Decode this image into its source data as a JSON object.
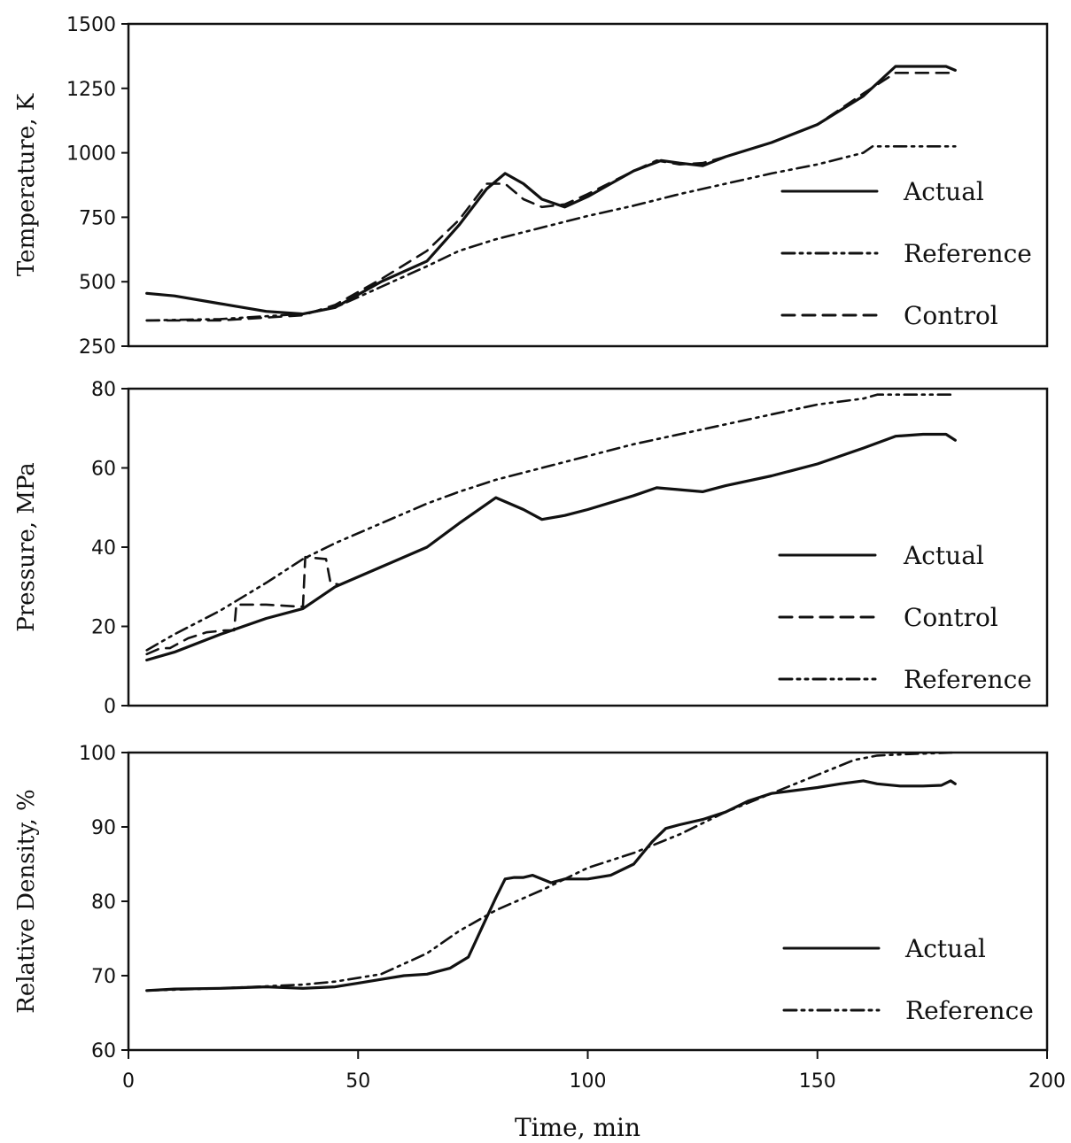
{
  "chart_data": [
    {
      "type": "line",
      "title": "",
      "xlabel": "",
      "ylabel": "Temperature, K",
      "xlim": [
        0,
        200
      ],
      "ylim": [
        250,
        1500
      ],
      "yticks": [
        "250",
        "500",
        "750",
        "1000",
        "1250",
        "1500"
      ],
      "legend": {
        "placement": "bottom-right",
        "entries": [
          "Actual",
          "Reference",
          "Control"
        ]
      },
      "series": [
        {
          "name": "Actual",
          "style": "solid",
          "x": [
            4,
            10,
            20,
            30,
            38,
            45,
            55,
            65,
            72,
            78,
            82,
            86,
            90,
            95,
            100,
            105,
            110,
            116,
            120,
            125,
            130,
            140,
            150,
            160,
            167,
            173,
            178,
            180
          ],
          "y": [
            455,
            445,
            415,
            385,
            375,
            400,
            500,
            580,
            720,
            860,
            920,
            880,
            820,
            790,
            830,
            880,
            930,
            970,
            960,
            950,
            985,
            1040,
            1110,
            1220,
            1335,
            1335,
            1335,
            1320
          ]
        },
        {
          "name": "Reference",
          "style": "dashdotdot",
          "x": [
            4,
            20,
            38,
            45,
            55,
            65,
            72,
            80,
            90,
            100,
            110,
            120,
            130,
            140,
            150,
            160,
            162,
            175,
            180
          ],
          "y": [
            350,
            355,
            375,
            400,
            480,
            560,
            620,
            665,
            710,
            755,
            795,
            840,
            880,
            920,
            955,
            1000,
            1025,
            1025,
            1025
          ]
        },
        {
          "name": "Control",
          "style": "dashed",
          "x": [
            4,
            20,
            38,
            45,
            55,
            65,
            72,
            78,
            82,
            86,
            90,
            95,
            100,
            110,
            115,
            120,
            125,
            130,
            140,
            150,
            160,
            167,
            180
          ],
          "y": [
            350,
            350,
            370,
            410,
            510,
            620,
            740,
            880,
            880,
            820,
            790,
            800,
            840,
            930,
            970,
            955,
            960,
            985,
            1040,
            1110,
            1230,
            1310,
            1310
          ]
        }
      ]
    },
    {
      "type": "line",
      "title": "",
      "xlabel": "",
      "ylabel": "Pressure, MPa",
      "xlim": [
        0,
        200
      ],
      "ylim": [
        0,
        80
      ],
      "yticks": [
        "0",
        "20",
        "40",
        "60",
        "80"
      ],
      "legend": {
        "placement": "bottom-right",
        "entries": [
          "Actual",
          "Control",
          "Reference"
        ]
      },
      "series": [
        {
          "name": "Actual",
          "style": "solid",
          "x": [
            4,
            10,
            20,
            30,
            38,
            45,
            55,
            65,
            72,
            80,
            86,
            90,
            95,
            100,
            110,
            115,
            120,
            125,
            130,
            140,
            150,
            160,
            167,
            173,
            178,
            180
          ],
          "y": [
            11.5,
            13.5,
            18,
            22,
            24.5,
            30,
            35,
            40,
            46,
            52.5,
            49.5,
            47,
            48,
            49.5,
            53,
            55,
            54.5,
            54,
            55.5,
            58,
            61,
            65,
            68,
            68.5,
            68.5,
            67
          ]
        },
        {
          "name": "Control",
          "style": "dashed",
          "x": [
            4,
            7,
            9,
            13,
            17,
            21,
            23,
            23.5,
            30,
            37,
            38,
            38.5,
            43,
            44,
            46,
            55,
            65,
            72,
            80,
            86,
            90,
            95,
            100,
            110,
            115,
            120,
            125,
            130,
            140,
            150,
            160,
            167,
            173,
            178,
            180
          ],
          "y": [
            13,
            14.5,
            14.5,
            17,
            18.5,
            19,
            19,
            25.5,
            25.5,
            25,
            25,
            37.5,
            37,
            31,
            30.5,
            35,
            40,
            46,
            52.5,
            49.5,
            47,
            48,
            49.5,
            53,
            55,
            54.5,
            54,
            55.5,
            58,
            61,
            65,
            68,
            68.5,
            68.5,
            67
          ]
        },
        {
          "name": "Reference",
          "style": "dashdotdot",
          "x": [
            4,
            10,
            20,
            30,
            38,
            45,
            55,
            65,
            72,
            80,
            90,
            100,
            110,
            120,
            130,
            140,
            150,
            160,
            163,
            180
          ],
          "y": [
            14,
            18,
            24,
            31,
            37,
            41,
            46,
            51,
            54,
            57,
            60,
            63,
            66,
            68.5,
            71,
            73.5,
            76,
            77.5,
            78.5,
            78.5
          ]
        }
      ]
    },
    {
      "type": "line",
      "title": "",
      "xlabel": "Time, min",
      "ylabel": "Relative Density, %",
      "xlim": [
        0,
        200
      ],
      "ylim": [
        60,
        100
      ],
      "xticks": [
        "0",
        "50",
        "100",
        "150",
        "200"
      ],
      "yticks": [
        "60",
        "70",
        "80",
        "90",
        "100"
      ],
      "legend": {
        "placement": "bottom-right",
        "entries": [
          "Actual",
          "Reference"
        ]
      },
      "series": [
        {
          "name": "Actual",
          "style": "solid",
          "x": [
            4,
            10,
            20,
            30,
            38,
            45,
            50,
            55,
            60,
            65,
            70,
            74,
            77,
            80,
            82,
            84,
            86,
            88,
            92,
            95,
            100,
            105,
            110,
            114,
            117,
            120,
            125,
            130,
            135,
            140,
            150,
            155,
            160,
            163,
            168,
            173,
            177,
            179,
            180
          ],
          "y": [
            68,
            68.2,
            68.3,
            68.5,
            68.3,
            68.5,
            69,
            69.5,
            70,
            70.2,
            71,
            72.5,
            76.5,
            80.5,
            83,
            83.2,
            83.2,
            83.5,
            82.5,
            83,
            83,
            83.5,
            85,
            88,
            89.8,
            90.3,
            91,
            92,
            93.5,
            94.5,
            95.3,
            95.8,
            96.2,
            95.8,
            95.5,
            95.5,
            95.6,
            96.2,
            95.8
          ]
        },
        {
          "name": "Reference",
          "style": "dashdotdot",
          "x": [
            4,
            20,
            38,
            45,
            55,
            65,
            72,
            80,
            90,
            100,
            110,
            120,
            125,
            130,
            140,
            150,
            158,
            163,
            170,
            180
          ],
          "y": [
            68,
            68.3,
            68.8,
            69.2,
            70.2,
            73,
            76,
            78.8,
            81.5,
            84.5,
            86.5,
            89,
            90.5,
            92,
            94.5,
            97,
            99,
            99.6,
            99.8,
            100
          ]
        }
      ]
    }
  ]
}
